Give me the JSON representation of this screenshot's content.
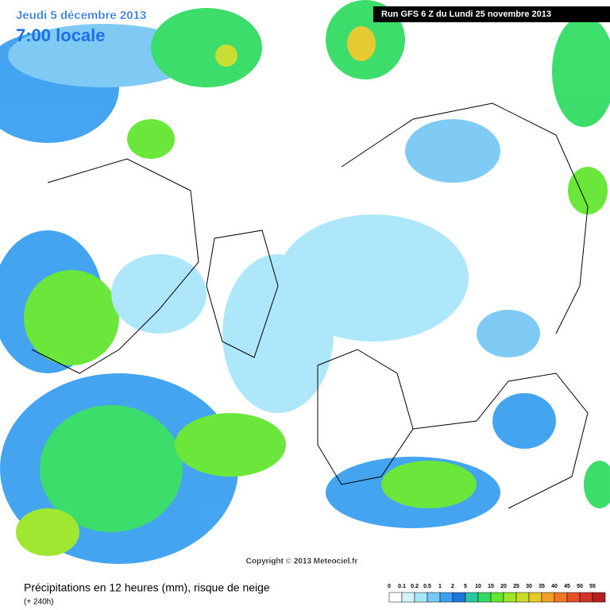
{
  "header": {
    "date": "Jeudi 5 décembre 2013",
    "time": "7:00 locale",
    "run": "Run GFS 6 Z du Lundi 25 novembre 2013"
  },
  "copyright": "Copyright © 2013 Meteociel.fr",
  "legend": {
    "title": "Précipitations en 12 heures (mm), risque de neige",
    "subtitle": "(+ 240h)",
    "levels": [
      {
        "label": "0",
        "color": "#ffffff"
      },
      {
        "label": "0.1",
        "color": "#d2f5ff"
      },
      {
        "label": "0.2",
        "color": "#aae6fa"
      },
      {
        "label": "0.5",
        "color": "#78c8f5"
      },
      {
        "label": "1",
        "color": "#3ca0f0"
      },
      {
        "label": "2",
        "color": "#1e78dc"
      },
      {
        "label": "5",
        "color": "#28c8a0"
      },
      {
        "label": "10",
        "color": "#32dc64"
      },
      {
        "label": "15",
        "color": "#64e632"
      },
      {
        "label": "20",
        "color": "#9be628"
      },
      {
        "label": "25",
        "color": "#c8dc28"
      },
      {
        "label": "30",
        "color": "#e6c828"
      },
      {
        "label": "35",
        "color": "#f0a028"
      },
      {
        "label": "40",
        "color": "#f07828"
      },
      {
        "label": "45",
        "color": "#e65028"
      },
      {
        "label": "50",
        "color": "#d23228"
      },
      {
        "label": "55",
        "color": "#b41e1e"
      }
    ]
  }
}
